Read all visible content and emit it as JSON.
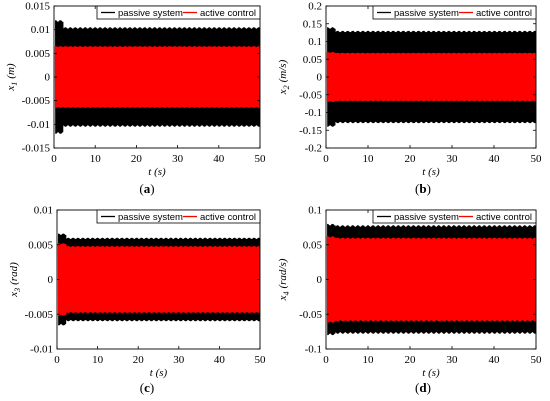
{
  "chart_data": [
    {
      "type": "line",
      "panel_label": "(a)",
      "xlabel": "t (s)",
      "ylabel": "x1 (m)",
      "ylabel_base": "x",
      "ylabel_sub": "1",
      "ylabel_unit": "(m)",
      "xlim": [
        0,
        50
      ],
      "ylim": [
        -0.015,
        0.015
      ],
      "xticks": [
        "0",
        "10",
        "20",
        "30",
        "40",
        "50"
      ],
      "yticks": [
        "0.015",
        "0.01",
        "0.005",
        "0",
        "-0.005",
        "-0.01",
        "-0.015"
      ],
      "legend_location": "top-right",
      "series": [
        {
          "name": "passive system",
          "color": "#000000",
          "amplitude": 0.0105,
          "peak": 0.012,
          "oscillation_freq_hz": 2.0
        },
        {
          "name": "active control",
          "color": "#ff0000",
          "amplitude": 0.0065,
          "peak": 0.0065,
          "oscillation_freq_hz": 2.0
        }
      ]
    },
    {
      "type": "line",
      "panel_label": "(b)",
      "xlabel": "t (s)",
      "ylabel": "x2 (m/s)",
      "ylabel_base": "x",
      "ylabel_sub": "2",
      "ylabel_unit": "(m/s)",
      "xlim": [
        0,
        50
      ],
      "ylim": [
        -0.2,
        0.2
      ],
      "xticks": [
        "0",
        "10",
        "20",
        "30",
        "40",
        "50"
      ],
      "yticks": [
        "0.2",
        "0.15",
        "0.1",
        "0.05",
        "0",
        "-0.05",
        "-0.1",
        "-0.15",
        "-0.2"
      ],
      "legend_location": "top-right",
      "series": [
        {
          "name": "passive system",
          "color": "#000000",
          "amplitude": 0.13,
          "peak": 0.14,
          "oscillation_freq_hz": 2.0
        },
        {
          "name": "active control",
          "color": "#ff0000",
          "amplitude": 0.068,
          "peak": 0.07,
          "oscillation_freq_hz": 2.0
        }
      ]
    },
    {
      "type": "line",
      "panel_label": "(c)",
      "xlabel": "t (s)",
      "ylabel": "x3 (rad)",
      "ylabel_base": "x",
      "ylabel_sub": "3",
      "ylabel_unit": "(rad)",
      "xlim": [
        0,
        50
      ],
      "ylim": [
        -0.01,
        0.01
      ],
      "xticks": [
        "0",
        "10",
        "20",
        "30",
        "40",
        "50"
      ],
      "yticks": [
        "0.01",
        "0.005",
        "0",
        "-0.005",
        "-0.01"
      ],
      "legend_location": "top-right",
      "series": [
        {
          "name": "passive system",
          "color": "#000000",
          "amplitude": 0.006,
          "peak": 0.0066,
          "oscillation_freq_hz": 2.0
        },
        {
          "name": "active control",
          "color": "#ff0000",
          "amplitude": 0.0048,
          "peak": 0.0052,
          "oscillation_freq_hz": 2.0
        }
      ]
    },
    {
      "type": "line",
      "panel_label": "(d)",
      "xlabel": "t (s)",
      "ylabel": "x4 (rad/s)",
      "ylabel_base": "x",
      "ylabel_sub": "4",
      "ylabel_unit": "(rad/s)",
      "xlim": [
        0,
        50
      ],
      "ylim": [
        -0.1,
        0.1
      ],
      "xticks": [
        "0",
        "10",
        "20",
        "30",
        "40",
        "50"
      ],
      "yticks": [
        "0.1",
        "0.05",
        "0",
        "-0.05",
        "-0.1"
      ],
      "legend_location": "top-right",
      "series": [
        {
          "name": "passive system",
          "color": "#000000",
          "amplitude": 0.078,
          "peak": 0.08,
          "oscillation_freq_hz": 2.0
        },
        {
          "name": "active control",
          "color": "#ff0000",
          "amplitude": 0.06,
          "peak": 0.062,
          "oscillation_freq_hz": 2.0
        }
      ]
    }
  ]
}
